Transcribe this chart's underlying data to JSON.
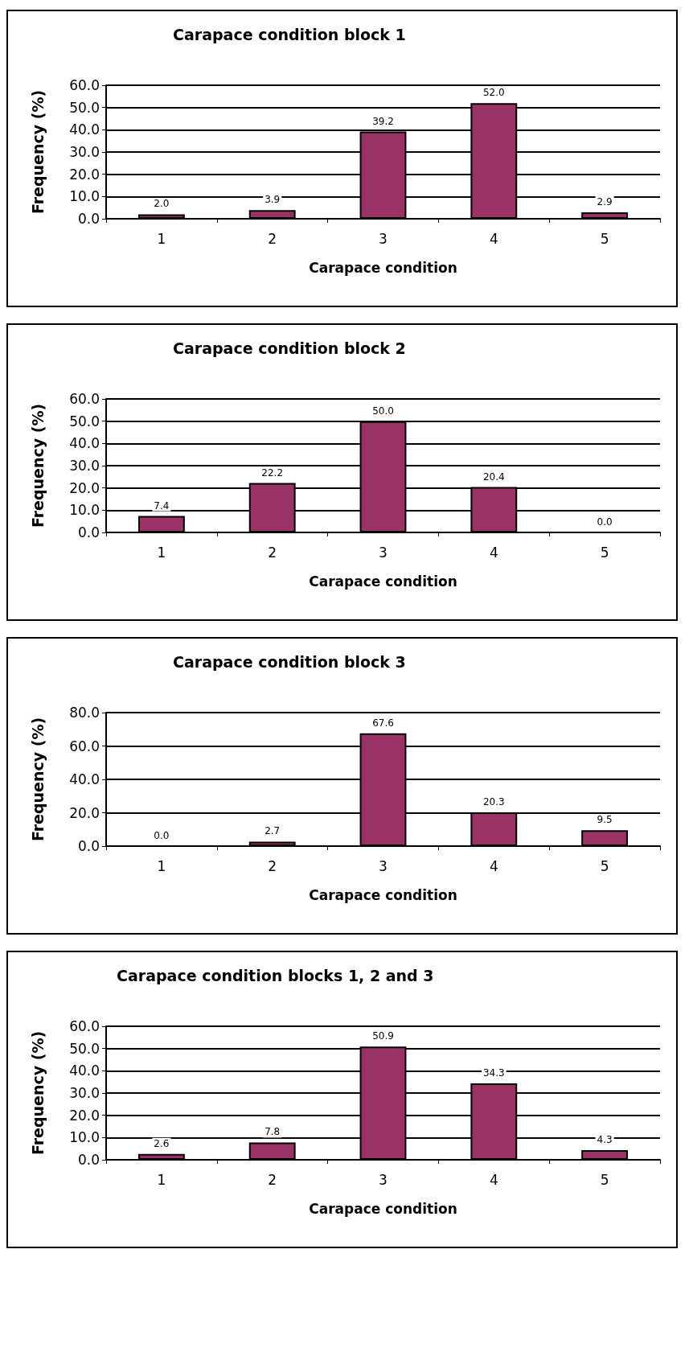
{
  "chart_data": [
    {
      "type": "bar",
      "title": "Carapace condition block 1",
      "xlabel": "Carapace condition",
      "ylabel": "Frequency (%)",
      "categories": [
        "1",
        "2",
        "3",
        "4",
        "5"
      ],
      "values": [
        2.0,
        3.9,
        39.2,
        52.0,
        2.9
      ],
      "value_labels": [
        "2.0",
        "3.9",
        "39.2",
        "52.0",
        "2.9"
      ],
      "color": "#993366",
      "ylim": [
        0,
        60
      ],
      "yticks": [
        {
          "value": 0,
          "label": "0.0"
        },
        {
          "value": 10,
          "label": "10.0"
        },
        {
          "value": 20,
          "label": "20.0"
        },
        {
          "value": 30,
          "label": "30.0"
        },
        {
          "value": 40,
          "label": "40.0"
        },
        {
          "value": 50,
          "label": "50.0"
        },
        {
          "value": 60,
          "label": "60.0"
        }
      ],
      "grid": "y"
    },
    {
      "type": "bar",
      "title": "Carapace condition block 2",
      "xlabel": "Carapace condition",
      "ylabel": "Frequency (%)",
      "categories": [
        "1",
        "2",
        "3",
        "4",
        "5"
      ],
      "values": [
        7.4,
        22.2,
        50.0,
        20.4,
        0.0
      ],
      "value_labels": [
        "7.4",
        "22.2",
        "50.0",
        "20.4",
        "0.0"
      ],
      "color": "#993366",
      "ylim": [
        0,
        60
      ],
      "yticks": [
        {
          "value": 0,
          "label": "0.0"
        },
        {
          "value": 10,
          "label": "10.0"
        },
        {
          "value": 20,
          "label": "20.0"
        },
        {
          "value": 30,
          "label": "30.0"
        },
        {
          "value": 40,
          "label": "40.0"
        },
        {
          "value": 50,
          "label": "50.0"
        },
        {
          "value": 60,
          "label": "60.0"
        }
      ],
      "grid": "y"
    },
    {
      "type": "bar",
      "title": "Carapace condition block 3",
      "xlabel": "Carapace condition",
      "ylabel": "Frequency (%)",
      "categories": [
        "1",
        "2",
        "3",
        "4",
        "5"
      ],
      "values": [
        0.0,
        2.7,
        67.6,
        20.3,
        9.5
      ],
      "value_labels": [
        "0.0",
        "2.7",
        "67.6",
        "20.3",
        "9.5"
      ],
      "color": "#993366",
      "ylim": [
        0,
        80
      ],
      "yticks": [
        {
          "value": 0,
          "label": "0.0"
        },
        {
          "value": 20,
          "label": "20.0"
        },
        {
          "value": 40,
          "label": "40.0"
        },
        {
          "value": 60,
          "label": "60.0"
        },
        {
          "value": 80,
          "label": "80.0"
        }
      ],
      "grid": "y"
    },
    {
      "type": "bar",
      "title": "Carapace condition blocks 1, 2 and 3",
      "xlabel": "Carapace condition",
      "ylabel": "Frequency (%)",
      "categories": [
        "1",
        "2",
        "3",
        "4",
        "5"
      ],
      "values": [
        2.6,
        7.8,
        50.9,
        34.3,
        4.3
      ],
      "value_labels": [
        "2.6",
        "7.8",
        "50.9",
        "34.3",
        "4.3"
      ],
      "color": "#993366",
      "ylim": [
        0,
        60
      ],
      "yticks": [
        {
          "value": 0,
          "label": "0.0"
        },
        {
          "value": 10,
          "label": "10.0"
        },
        {
          "value": 20,
          "label": "20.0"
        },
        {
          "value": 30,
          "label": "30.0"
        },
        {
          "value": 40,
          "label": "40.0"
        },
        {
          "value": 50,
          "label": "50.0"
        },
        {
          "value": 60,
          "label": "60.0"
        }
      ],
      "grid": "y"
    }
  ]
}
